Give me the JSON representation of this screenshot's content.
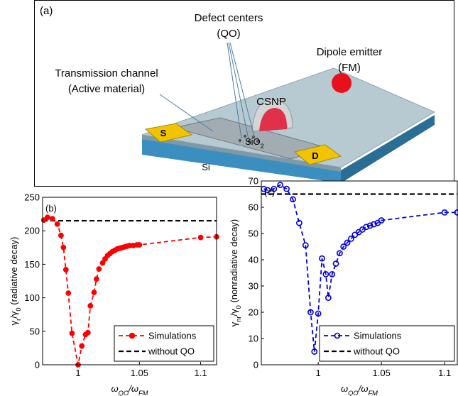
{
  "panel_a": {
    "label": "(a)",
    "defect_label": [
      "Defect centers",
      "(QO)"
    ],
    "emitter_label": [
      "Dipole emitter",
      "(FM)"
    ],
    "channel_label": [
      "Transmission channel",
      "(Active material)"
    ],
    "particle_label": "CSNP",
    "source_label": "S",
    "drain_label": "D",
    "oxide_label": [
      {
        "text": "SiO",
        "sub": false
      },
      {
        "text": "2",
        "sub": true
      }
    ],
    "substrate_label": "Si"
  },
  "chart_data": [
    {
      "type": "line",
      "label": "(b)",
      "xlabel": [
        {
          "text": "ω",
          "sub": false
        },
        {
          "text": "QO",
          "sub": true
        },
        {
          "text": "/ω",
          "sub": false
        },
        {
          "text": "FM",
          "sub": true
        }
      ],
      "ylabel": [
        {
          "text": "γ",
          "sub": false
        },
        {
          "text": "r",
          "sub": true
        },
        {
          "text": "/γ",
          "sub": false
        },
        {
          "text": "0",
          "sub": true
        },
        {
          "text": " (radiative decay)",
          "sub": false
        }
      ],
      "x": [
        0.972,
        0.975,
        0.979,
        0.983,
        0.986,
        0.988,
        0.99,
        0.992,
        0.995,
        1.0,
        1.003,
        1.006,
        1.008,
        1.01,
        1.013,
        1.015,
        1.017,
        1.02,
        1.022,
        1.024,
        1.026,
        1.028,
        1.03,
        1.032,
        1.034,
        1.036,
        1.038,
        1.04,
        1.042,
        1.045,
        1.048,
        1.05,
        1.1,
        1.113
      ],
      "series": [
        {
          "name": "Simulations",
          "color": "#ff0000",
          "marker": "filled",
          "values": [
            216,
            220,
            218,
            210,
            193,
            175,
            142,
            107,
            47,
            0,
            28,
            45,
            48,
            88,
            108,
            128,
            143,
            152,
            158,
            163,
            166,
            169,
            171,
            173,
            174,
            175,
            176,
            177,
            178,
            178,
            179,
            179,
            190,
            191
          ]
        }
      ],
      "reference": {
        "name": "without QO",
        "value": 215,
        "color": "#000000"
      },
      "xlim": [
        0.971,
        1.113
      ],
      "xticks": [
        1,
        1.05,
        1.1
      ],
      "ylim": [
        0,
        250
      ],
      "yticks": [
        0,
        50,
        100,
        150,
        200,
        250
      ],
      "legend": "lower right"
    },
    {
      "type": "line",
      "label": "(c)",
      "xlabel": [
        {
          "text": "ω",
          "sub": false
        },
        {
          "text": "QO",
          "sub": true
        },
        {
          "text": "/ω",
          "sub": false
        },
        {
          "text": "FM",
          "sub": true
        }
      ],
      "ylabel": [
        {
          "text": "γ",
          "sub": false
        },
        {
          "text": "nr",
          "sub": true
        },
        {
          "text": "/γ",
          "sub": false
        },
        {
          "text": "0",
          "sub": true
        },
        {
          "text": " (nonradiative decay)",
          "sub": false
        }
      ],
      "x": [
        0.957,
        0.96,
        0.965,
        0.97,
        0.975,
        0.98,
        0.985,
        0.99,
        0.994,
        0.997,
        1.0,
        1.003,
        1.006,
        1.008,
        1.011,
        1.014,
        1.017,
        1.02,
        1.023,
        1.026,
        1.029,
        1.032,
        1.035,
        1.038,
        1.041,
        1.044,
        1.047,
        1.05,
        1.1,
        1.11
      ],
      "series": [
        {
          "name": "Simulations",
          "color": "#0000dd",
          "marker": "open",
          "values": [
            67,
            66.5,
            67,
            68.5,
            67,
            63,
            54,
            45.5,
            20,
            5,
            19.5,
            40.5,
            34.5,
            25.5,
            34.5,
            38.5,
            42.5,
            45,
            46.5,
            48,
            49.5,
            50.5,
            51.5,
            52.5,
            53,
            53.5,
            54,
            55,
            58,
            58
          ]
        }
      ],
      "reference": {
        "name": "without QO",
        "value": 65,
        "color": "#000000"
      },
      "xlim": [
        0.955,
        1.11
      ],
      "xticks": [
        1,
        1.05,
        1.1
      ],
      "ylim": [
        0,
        70
      ],
      "yticks": [
        0,
        10,
        20,
        30,
        40,
        50,
        60,
        70
      ],
      "legend": "lower right"
    }
  ]
}
